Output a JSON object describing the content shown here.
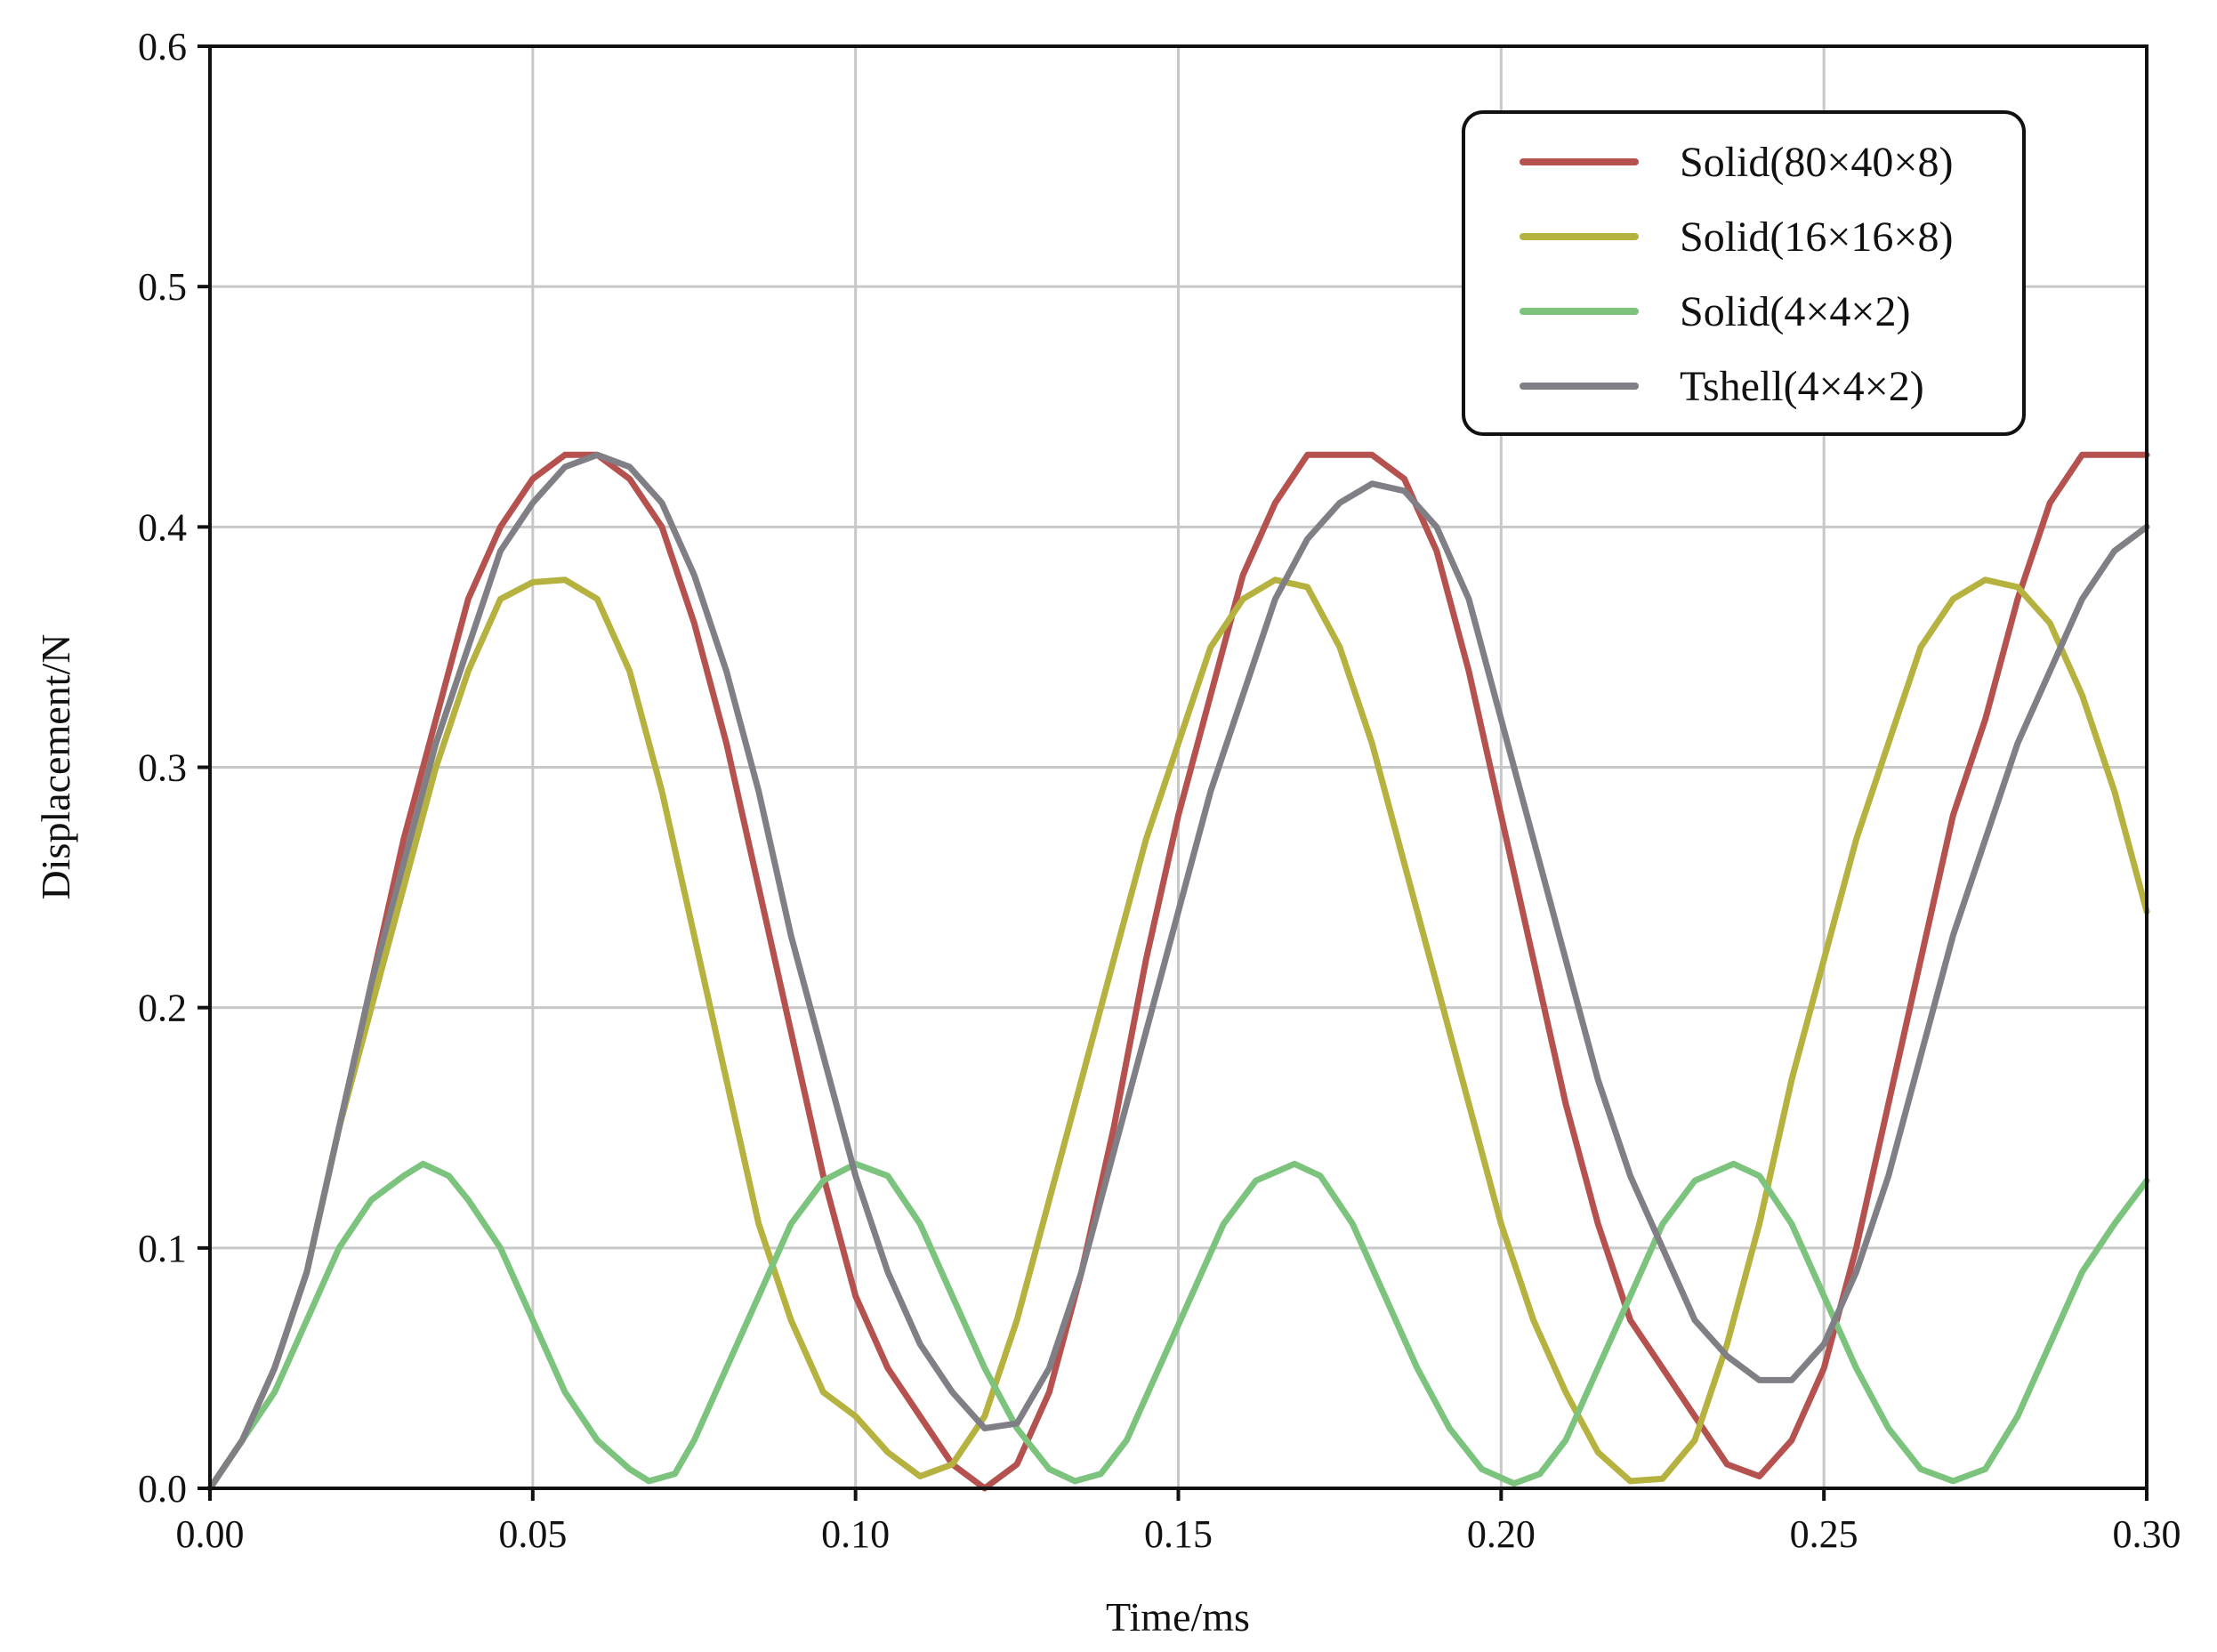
{
  "chart_data": {
    "type": "line",
    "title": "",
    "xlabel": "Time/ms",
    "ylabel": "Displacement/N",
    "xlim": [
      0,
      0.3
    ],
    "ylim": [
      0,
      0.6
    ],
    "xticks": [
      "0.00",
      "0.05",
      "0.10",
      "0.15",
      "0.20",
      "0.25",
      "0.30"
    ],
    "yticks": [
      "0.0",
      "0.1",
      "0.2",
      "0.3",
      "0.4",
      "0.5",
      "0.6"
    ],
    "grid": true,
    "legend_position": "top-right",
    "series": [
      {
        "name": "Solid(80×40×8)",
        "color": "#b5524f",
        "points": [
          [
            0,
            0
          ],
          [
            0.005,
            0.02
          ],
          [
            0.01,
            0.05
          ],
          [
            0.015,
            0.09
          ],
          [
            0.02,
            0.15
          ],
          [
            0.025,
            0.21
          ],
          [
            0.03,
            0.27
          ],
          [
            0.035,
            0.32
          ],
          [
            0.04,
            0.37
          ],
          [
            0.045,
            0.4
          ],
          [
            0.05,
            0.42
          ],
          [
            0.055,
            0.43
          ],
          [
            0.06,
            0.43
          ],
          [
            0.065,
            0.42
          ],
          [
            0.07,
            0.4
          ],
          [
            0.075,
            0.36
          ],
          [
            0.08,
            0.31
          ],
          [
            0.085,
            0.25
          ],
          [
            0.09,
            0.19
          ],
          [
            0.095,
            0.13
          ],
          [
            0.1,
            0.08
          ],
          [
            0.105,
            0.05
          ],
          [
            0.11,
            0.03
          ],
          [
            0.115,
            0.01
          ],
          [
            0.12,
            0.0
          ],
          [
            0.125,
            0.01
          ],
          [
            0.13,
            0.04
          ],
          [
            0.135,
            0.09
          ],
          [
            0.14,
            0.15
          ],
          [
            0.145,
            0.22
          ],
          [
            0.15,
            0.28
          ],
          [
            0.155,
            0.33
          ],
          [
            0.16,
            0.38
          ],
          [
            0.165,
            0.41
          ],
          [
            0.17,
            0.43
          ],
          [
            0.175,
            0.43
          ],
          [
            0.18,
            0.43
          ],
          [
            0.185,
            0.42
          ],
          [
            0.19,
            0.39
          ],
          [
            0.195,
            0.34
          ],
          [
            0.2,
            0.28
          ],
          [
            0.205,
            0.22
          ],
          [
            0.21,
            0.16
          ],
          [
            0.215,
            0.11
          ],
          [
            0.22,
            0.07
          ],
          [
            0.225,
            0.05
          ],
          [
            0.23,
            0.03
          ],
          [
            0.235,
            0.01
          ],
          [
            0.24,
            0.005
          ],
          [
            0.245,
            0.02
          ],
          [
            0.25,
            0.05
          ],
          [
            0.255,
            0.1
          ],
          [
            0.26,
            0.16
          ],
          [
            0.265,
            0.22
          ],
          [
            0.27,
            0.28
          ],
          [
            0.275,
            0.32
          ],
          [
            0.28,
            0.37
          ],
          [
            0.285,
            0.41
          ],
          [
            0.29,
            0.43
          ],
          [
            0.295,
            0.43
          ],
          [
            0.3,
            0.43
          ]
        ]
      },
      {
        "name": "Solid(16×16×8)",
        "color": "#b5b23f",
        "points": [
          [
            0,
            0
          ],
          [
            0.005,
            0.02
          ],
          [
            0.01,
            0.05
          ],
          [
            0.015,
            0.09
          ],
          [
            0.02,
            0.15
          ],
          [
            0.025,
            0.2
          ],
          [
            0.03,
            0.25
          ],
          [
            0.035,
            0.3
          ],
          [
            0.04,
            0.34
          ],
          [
            0.045,
            0.37
          ],
          [
            0.05,
            0.377
          ],
          [
            0.055,
            0.378
          ],
          [
            0.06,
            0.37
          ],
          [
            0.065,
            0.34
          ],
          [
            0.07,
            0.29
          ],
          [
            0.075,
            0.23
          ],
          [
            0.08,
            0.17
          ],
          [
            0.085,
            0.11
          ],
          [
            0.09,
            0.07
          ],
          [
            0.095,
            0.04
          ],
          [
            0.1,
            0.03
          ],
          [
            0.105,
            0.015
          ],
          [
            0.11,
            0.005
          ],
          [
            0.115,
            0.01
          ],
          [
            0.12,
            0.03
          ],
          [
            0.125,
            0.07
          ],
          [
            0.13,
            0.12
          ],
          [
            0.135,
            0.17
          ],
          [
            0.14,
            0.22
          ],
          [
            0.145,
            0.27
          ],
          [
            0.15,
            0.31
          ],
          [
            0.155,
            0.35
          ],
          [
            0.16,
            0.37
          ],
          [
            0.165,
            0.378
          ],
          [
            0.17,
            0.375
          ],
          [
            0.175,
            0.35
          ],
          [
            0.18,
            0.31
          ],
          [
            0.185,
            0.26
          ],
          [
            0.19,
            0.21
          ],
          [
            0.195,
            0.16
          ],
          [
            0.2,
            0.11
          ],
          [
            0.205,
            0.07
          ],
          [
            0.21,
            0.04
          ],
          [
            0.215,
            0.015
          ],
          [
            0.22,
            0.003
          ],
          [
            0.225,
            0.004
          ],
          [
            0.23,
            0.02
          ],
          [
            0.235,
            0.06
          ],
          [
            0.24,
            0.11
          ],
          [
            0.245,
            0.17
          ],
          [
            0.25,
            0.22
          ],
          [
            0.255,
            0.27
          ],
          [
            0.26,
            0.31
          ],
          [
            0.265,
            0.35
          ],
          [
            0.27,
            0.37
          ],
          [
            0.275,
            0.378
          ],
          [
            0.28,
            0.375
          ],
          [
            0.285,
            0.36
          ],
          [
            0.29,
            0.33
          ],
          [
            0.295,
            0.29
          ],
          [
            0.3,
            0.24
          ]
        ]
      },
      {
        "name": "Solid(4×4×2)",
        "color": "#7cc37e",
        "points": [
          [
            0,
            0
          ],
          [
            0.005,
            0.02
          ],
          [
            0.01,
            0.04
          ],
          [
            0.015,
            0.07
          ],
          [
            0.02,
            0.1
          ],
          [
            0.025,
            0.12
          ],
          [
            0.03,
            0.13
          ],
          [
            0.033,
            0.135
          ],
          [
            0.037,
            0.13
          ],
          [
            0.04,
            0.12
          ],
          [
            0.045,
            0.1
          ],
          [
            0.05,
            0.07
          ],
          [
            0.055,
            0.04
          ],
          [
            0.06,
            0.02
          ],
          [
            0.065,
            0.008
          ],
          [
            0.068,
            0.003
          ],
          [
            0.072,
            0.006
          ],
          [
            0.075,
            0.02
          ],
          [
            0.08,
            0.05
          ],
          [
            0.085,
            0.08
          ],
          [
            0.09,
            0.11
          ],
          [
            0.095,
            0.128
          ],
          [
            0.1,
            0.135
          ],
          [
            0.105,
            0.13
          ],
          [
            0.11,
            0.11
          ],
          [
            0.115,
            0.08
          ],
          [
            0.12,
            0.05
          ],
          [
            0.125,
            0.025
          ],
          [
            0.13,
            0.008
          ],
          [
            0.134,
            0.003
          ],
          [
            0.138,
            0.006
          ],
          [
            0.142,
            0.02
          ],
          [
            0.147,
            0.05
          ],
          [
            0.152,
            0.08
          ],
          [
            0.157,
            0.11
          ],
          [
            0.162,
            0.128
          ],
          [
            0.168,
            0.135
          ],
          [
            0.172,
            0.13
          ],
          [
            0.177,
            0.11
          ],
          [
            0.182,
            0.08
          ],
          [
            0.187,
            0.05
          ],
          [
            0.192,
            0.025
          ],
          [
            0.197,
            0.008
          ],
          [
            0.202,
            0.002
          ],
          [
            0.206,
            0.006
          ],
          [
            0.21,
            0.02
          ],
          [
            0.215,
            0.05
          ],
          [
            0.22,
            0.08
          ],
          [
            0.225,
            0.11
          ],
          [
            0.23,
            0.128
          ],
          [
            0.236,
            0.135
          ],
          [
            0.24,
            0.13
          ],
          [
            0.245,
            0.11
          ],
          [
            0.25,
            0.08
          ],
          [
            0.255,
            0.05
          ],
          [
            0.26,
            0.025
          ],
          [
            0.265,
            0.008
          ],
          [
            0.27,
            0.003
          ],
          [
            0.275,
            0.008
          ],
          [
            0.28,
            0.03
          ],
          [
            0.285,
            0.06
          ],
          [
            0.29,
            0.09
          ],
          [
            0.295,
            0.11
          ],
          [
            0.3,
            0.128
          ]
        ]
      },
      {
        "name": "Tshell(4×4×2)",
        "color": "#7f7f85",
        "points": [
          [
            0,
            0
          ],
          [
            0.005,
            0.02
          ],
          [
            0.01,
            0.05
          ],
          [
            0.015,
            0.09
          ],
          [
            0.02,
            0.15
          ],
          [
            0.025,
            0.21
          ],
          [
            0.03,
            0.26
          ],
          [
            0.035,
            0.31
          ],
          [
            0.04,
            0.35
          ],
          [
            0.045,
            0.39
          ],
          [
            0.05,
            0.41
          ],
          [
            0.055,
            0.425
          ],
          [
            0.06,
            0.43
          ],
          [
            0.065,
            0.425
          ],
          [
            0.07,
            0.41
          ],
          [
            0.075,
            0.38
          ],
          [
            0.08,
            0.34
          ],
          [
            0.085,
            0.29
          ],
          [
            0.09,
            0.23
          ],
          [
            0.095,
            0.18
          ],
          [
            0.1,
            0.13
          ],
          [
            0.105,
            0.09
          ],
          [
            0.11,
            0.06
          ],
          [
            0.115,
            0.04
          ],
          [
            0.12,
            0.025
          ],
          [
            0.125,
            0.027
          ],
          [
            0.13,
            0.05
          ],
          [
            0.135,
            0.09
          ],
          [
            0.14,
            0.14
          ],
          [
            0.145,
            0.19
          ],
          [
            0.15,
            0.24
          ],
          [
            0.155,
            0.29
          ],
          [
            0.16,
            0.33
          ],
          [
            0.165,
            0.37
          ],
          [
            0.17,
            0.395
          ],
          [
            0.175,
            0.41
          ],
          [
            0.18,
            0.418
          ],
          [
            0.185,
            0.415
          ],
          [
            0.19,
            0.4
          ],
          [
            0.195,
            0.37
          ],
          [
            0.2,
            0.32
          ],
          [
            0.205,
            0.27
          ],
          [
            0.21,
            0.22
          ],
          [
            0.215,
            0.17
          ],
          [
            0.22,
            0.13
          ],
          [
            0.225,
            0.1
          ],
          [
            0.23,
            0.07
          ],
          [
            0.235,
            0.055
          ],
          [
            0.24,
            0.045
          ],
          [
            0.245,
            0.045
          ],
          [
            0.25,
            0.06
          ],
          [
            0.255,
            0.09
          ],
          [
            0.26,
            0.13
          ],
          [
            0.265,
            0.18
          ],
          [
            0.27,
            0.23
          ],
          [
            0.275,
            0.27
          ],
          [
            0.28,
            0.31
          ],
          [
            0.285,
            0.34
          ],
          [
            0.29,
            0.37
          ],
          [
            0.295,
            0.39
          ],
          [
            0.3,
            0.4
          ]
        ]
      }
    ]
  }
}
